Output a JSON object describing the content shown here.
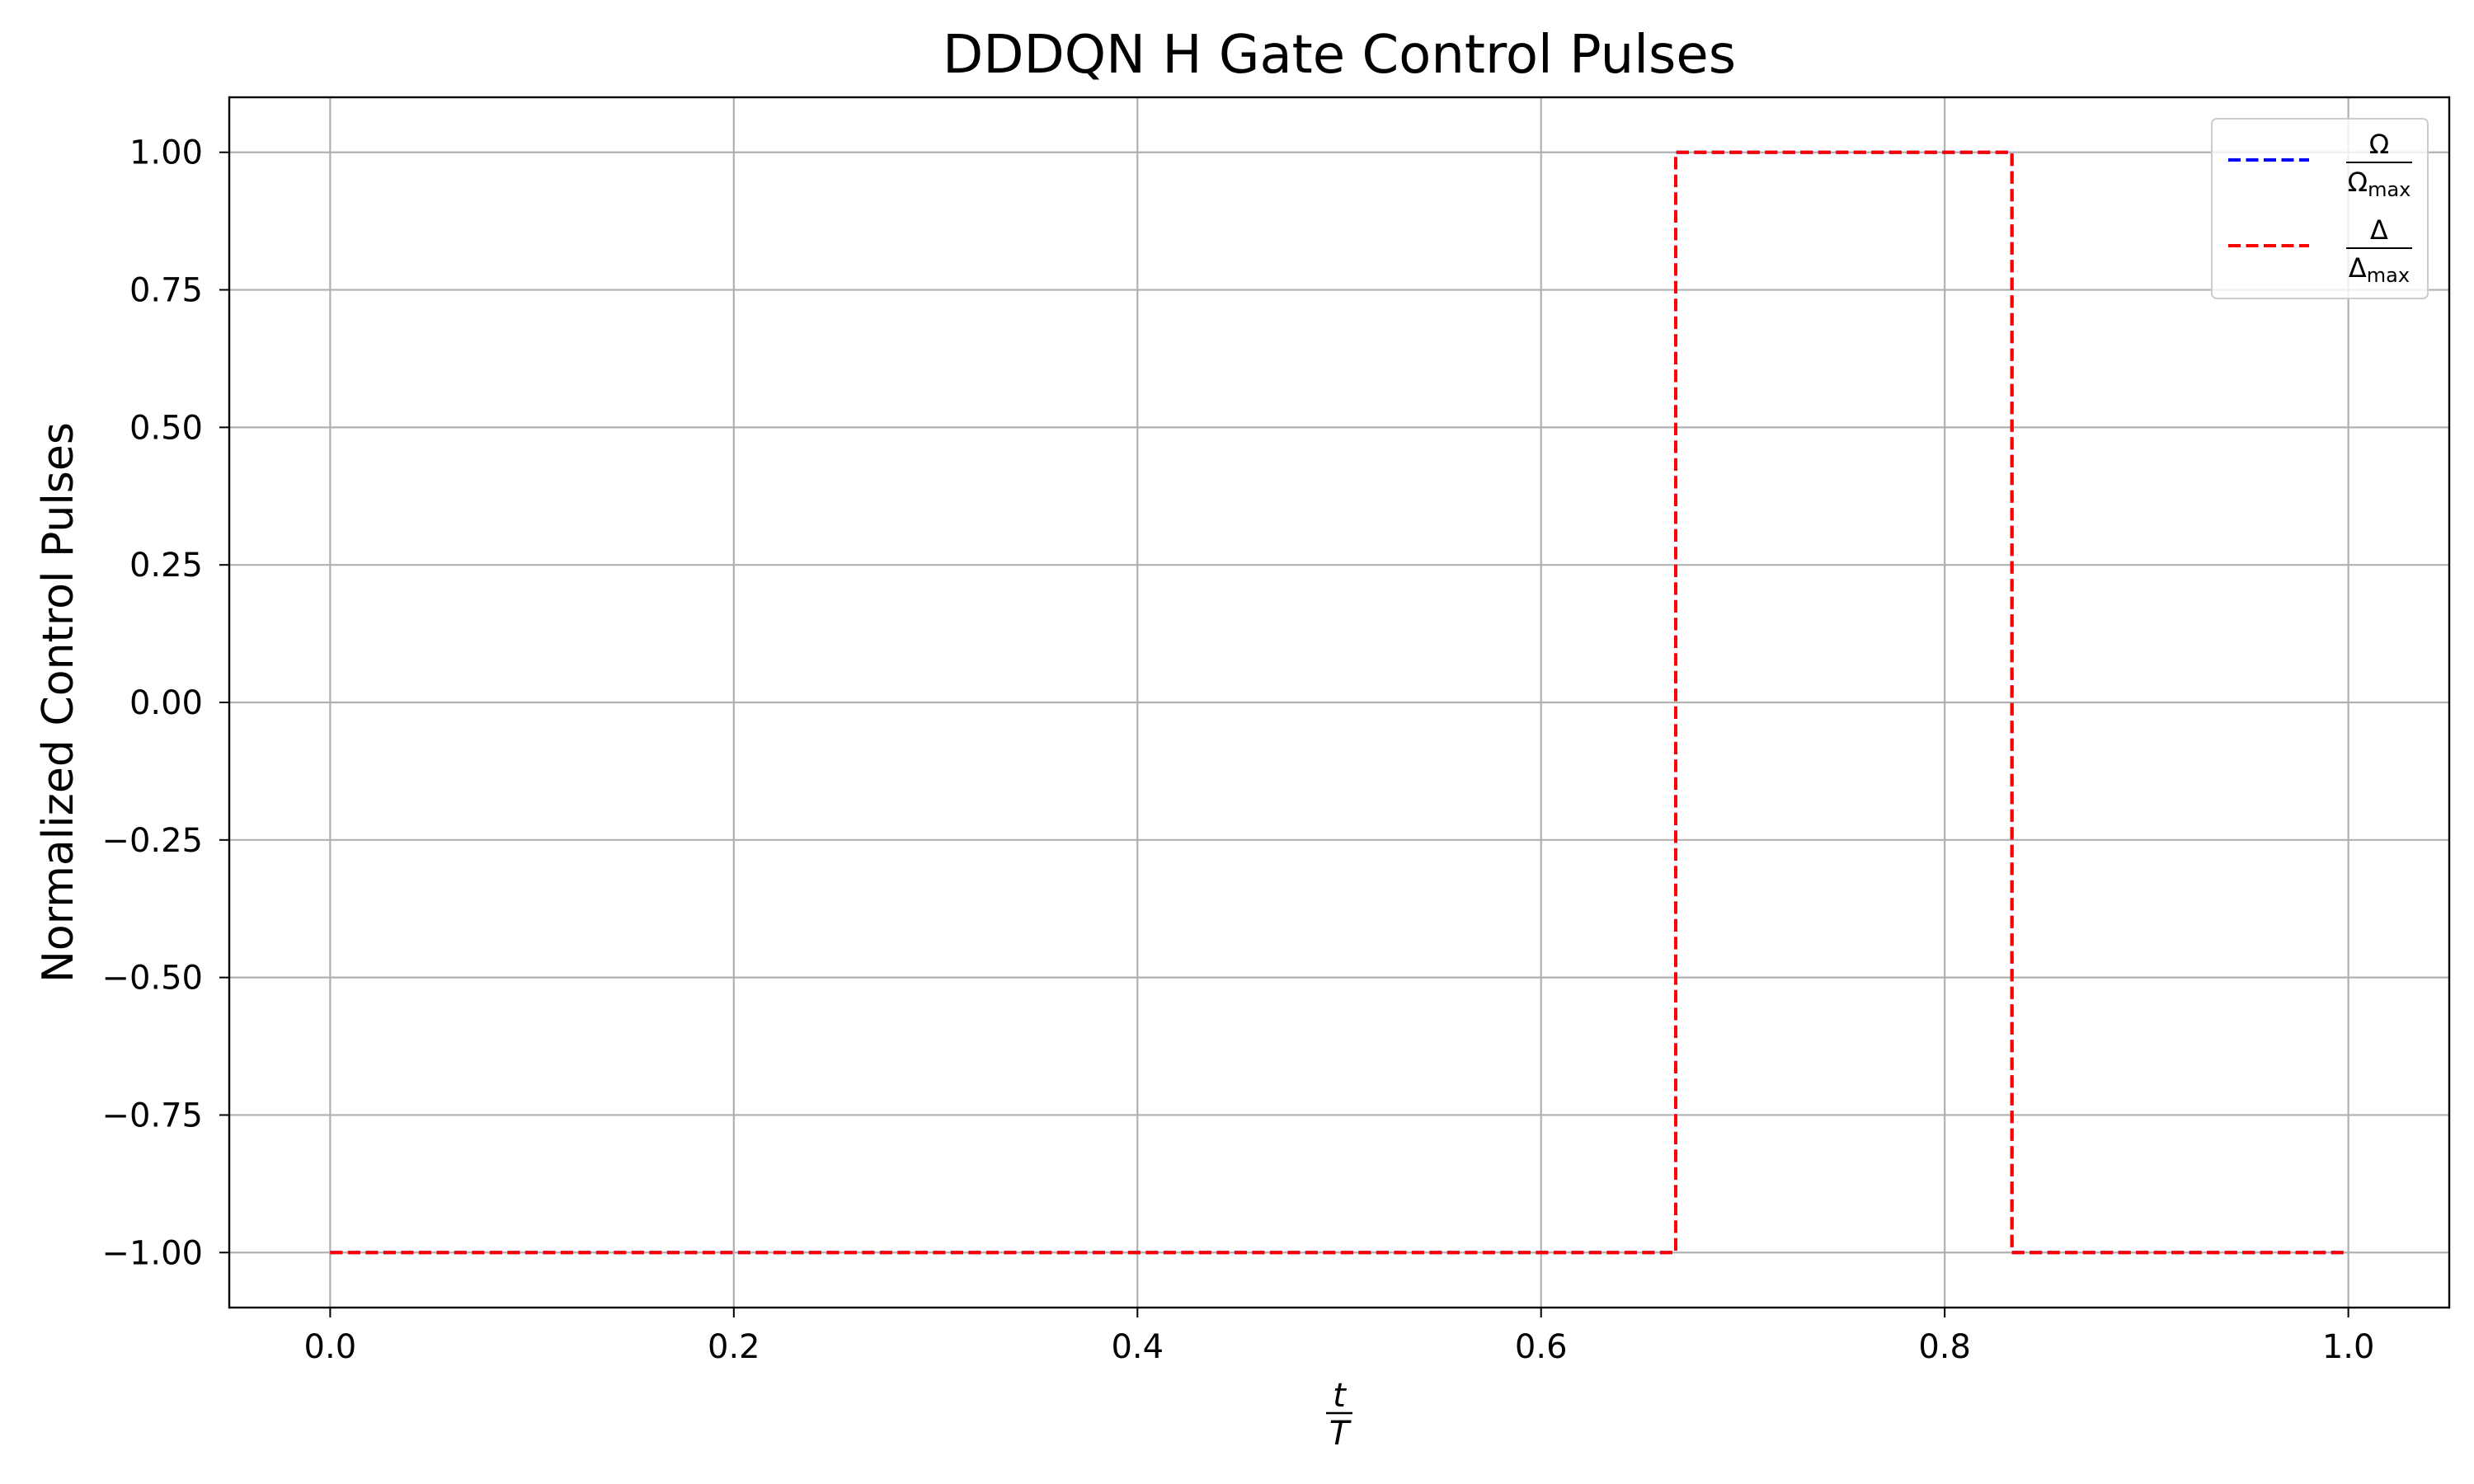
{
  "chart_data": {
    "type": "line",
    "title": "DDDQN H Gate Control Pulses",
    "xlabel": {
      "numerator": "t",
      "denominator": "T"
    },
    "ylabel": "Normalized Control Pulses",
    "xlim": [
      -0.05,
      1.05
    ],
    "ylim": [
      -1.1,
      1.1
    ],
    "xticks": [
      0.0,
      0.2,
      0.4,
      0.6,
      0.8,
      1.0
    ],
    "xtick_labels": [
      "0.0",
      "0.2",
      "0.4",
      "0.6",
      "0.8",
      "1.0"
    ],
    "yticks": [
      1.0,
      0.75,
      0.5,
      0.25,
      0.0,
      -0.25,
      -0.5,
      -0.75,
      -1.0
    ],
    "ytick_labels": [
      "1.00",
      "0.75",
      "0.50",
      "0.25",
      "0.00",
      "−0.25",
      "−0.50",
      "−0.75",
      "−1.00"
    ],
    "grid": true,
    "legend_position": "top-right",
    "series": [
      {
        "legend": {
          "numerator": "Ω",
          "denominator": "Ω",
          "subscript": "max"
        },
        "color": "#0000ff",
        "linestyle": "dashed",
        "x": [
          0.0,
          0.6667,
          0.6667,
          0.8333,
          0.8333,
          1.0
        ],
        "y": [
          -1.0,
          -1.0,
          1.0,
          1.0,
          -1.0,
          -1.0
        ]
      },
      {
        "legend": {
          "numerator": "Δ",
          "denominator": "Δ",
          "subscript": "max"
        },
        "color": "#ff0000",
        "linestyle": "dashed",
        "x": [
          0.0,
          0.6667,
          0.6667,
          0.8333,
          0.8333,
          1.0
        ],
        "y": [
          -1.0,
          -1.0,
          1.0,
          1.0,
          -1.0,
          -1.0
        ]
      }
    ]
  }
}
